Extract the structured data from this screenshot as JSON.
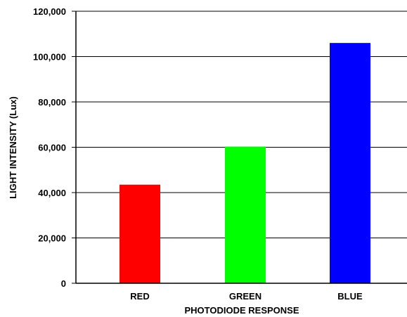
{
  "chart_data": {
    "type": "bar",
    "title": "",
    "xlabel": "PHOTODIODE RESPONSE",
    "ylabel": "LIGHT INTENSITY (Lux)",
    "categories": [
      "RED",
      "GREEN",
      "BLUE"
    ],
    "values": [
      43500,
      60300,
      106000
    ],
    "colors": [
      "#ff0000",
      "#00ff00",
      "#0000ff"
    ],
    "ylim": [
      0,
      120000
    ],
    "yticks": [
      0,
      20000,
      40000,
      60000,
      80000,
      100000,
      120000
    ],
    "ytick_labels": [
      "0",
      "20,000",
      "40,000",
      "60,000",
      "80,000",
      "100,000",
      "120,000"
    ],
    "grid": "horizontal",
    "legend": "none"
  }
}
